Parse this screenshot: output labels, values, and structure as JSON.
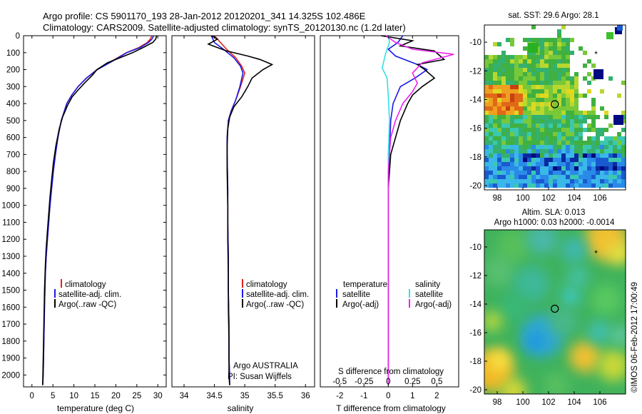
{
  "header": {
    "title": "Argo profile: CS 5901170_193 28-Jan-2012 20120201_341 14.325S 102.486E",
    "subtitle": "Climatology: CARS2009. Satellite-adjusted climatology: synTS_20120130.nc (1.2d later)"
  },
  "colors": {
    "climatology": "#e0201a",
    "satellite": "#1a1ae6",
    "argo": "#000000",
    "satellite_s": "#33e0e8",
    "argo_s": "#ee22ee"
  },
  "chart_data": [
    {
      "type": "line",
      "xlabel": "temperature (deg C)",
      "ylabel": "",
      "xticks": [
        0,
        5,
        10,
        15,
        20,
        25,
        30
      ],
      "yticks": [
        0,
        100,
        200,
        300,
        400,
        500,
        600,
        700,
        800,
        900,
        1000,
        1100,
        1200,
        1300,
        1400,
        1500,
        1600,
        1700,
        1800,
        1900,
        2000
      ],
      "xlim": [
        -2,
        32
      ],
      "ylim": [
        2070,
        0
      ],
      "legend": [
        "climatology",
        "satellite-adj. clim.",
        "Argo(..raw -QC)"
      ],
      "series": [
        {
          "name": "climatology",
          "color": "#e0201a",
          "x": [
            28.6,
            28.2,
            27.5,
            25.5,
            22.5,
            19.0,
            15.5,
            13.0,
            11.0,
            9.5,
            8.3,
            7.0,
            6.2,
            5.6,
            5.1,
            4.7,
            4.3,
            4.0,
            3.7,
            3.4,
            3.2,
            3.0,
            2.85,
            2.7,
            2.55
          ],
          "y": [
            0,
            20,
            40,
            70,
            100,
            150,
            200,
            250,
            300,
            350,
            400,
            500,
            600,
            700,
            800,
            900,
            1000,
            1100,
            1200,
            1300,
            1400,
            1600,
            1800,
            2000,
            2060
          ]
        },
        {
          "name": "satellite-adj. clim.",
          "color": "#1a1ae6",
          "x": [
            29.0,
            28.6,
            27.8,
            25.8,
            22.6,
            19.2,
            15.6,
            13.0,
            11.0,
            9.5,
            8.3,
            7.0,
            6.2,
            5.6,
            5.1,
            4.7,
            4.3,
            4.0,
            3.7,
            3.4,
            3.2,
            3.0,
            2.85,
            2.7,
            2.55
          ],
          "y": [
            0,
            20,
            40,
            70,
            100,
            150,
            200,
            250,
            300,
            350,
            400,
            500,
            600,
            700,
            800,
            900,
            1000,
            1100,
            1200,
            1300,
            1400,
            1600,
            1800,
            2000,
            2060
          ]
        },
        {
          "name": "Argo(..raw -QC)",
          "color": "#000000",
          "x": [
            29.7,
            29.5,
            28.8,
            26.5,
            24.0,
            21.0,
            18.0,
            15.5,
            14.5,
            12.5,
            11.0,
            9.6,
            8.5,
            7.3,
            6.5,
            5.7,
            5.1,
            4.7,
            4.3,
            4.0,
            3.7,
            3.4,
            3.2,
            3.0,
            2.85,
            2.7,
            2.55
          ],
          "y": [
            0,
            20,
            40,
            70,
            100,
            130,
            160,
            200,
            230,
            280,
            320,
            360,
            410,
            480,
            550,
            650,
            750,
            850,
            950,
            1050,
            1150,
            1250,
            1350,
            1500,
            1700,
            1900,
            2060
          ]
        }
      ]
    },
    {
      "type": "line",
      "xlabel": "salinity",
      "ylabel": "",
      "xticks": [
        34,
        34.5,
        35,
        35.5,
        36
      ],
      "xticklabels": [
        "34",
        "34.5",
        "35",
        "35.5",
        "36"
      ],
      "xlim": [
        33.8,
        36.15
      ],
      "ylim": [
        2070,
        0
      ],
      "legend": [
        "climatology",
        "satellite-adj. clim.",
        "Argo(..raw -QC)"
      ],
      "series": [
        {
          "name": "climatology",
          "color": "#e0201a",
          "x": [
            34.5,
            34.6,
            34.7,
            34.85,
            34.95,
            35.0,
            34.93,
            34.85,
            34.78,
            34.73,
            34.71,
            34.71,
            34.72,
            34.72,
            34.73,
            34.73,
            34.74,
            34.74,
            34.75,
            34.75
          ],
          "y": [
            0,
            40,
            80,
            130,
            180,
            220,
            300,
            380,
            440,
            500,
            600,
            700,
            900,
            1100,
            1300,
            1500,
            1700,
            1900,
            2000,
            2060
          ]
        },
        {
          "name": "satellite-adj. clim.",
          "color": "#1a1ae6",
          "x": [
            34.45,
            34.5,
            34.65,
            34.82,
            34.93,
            34.97,
            34.92,
            34.85,
            34.78,
            34.73,
            34.71,
            34.71,
            34.72,
            34.72,
            34.73,
            34.73,
            34.74,
            34.74,
            34.75,
            34.75
          ],
          "y": [
            0,
            40,
            80,
            130,
            180,
            220,
            300,
            380,
            440,
            500,
            600,
            700,
            900,
            1100,
            1300,
            1500,
            1700,
            1900,
            2000,
            2060
          ]
        },
        {
          "name": "Argo(..raw -QC)",
          "color": "#000000",
          "x": [
            34.45,
            34.55,
            34.4,
            34.7,
            35.05,
            35.25,
            35.45,
            35.3,
            35.12,
            35.05,
            34.95,
            34.82,
            34.75,
            34.72,
            34.71,
            34.71,
            34.72,
            34.72,
            34.73,
            34.73,
            34.74,
            34.74,
            34.75
          ],
          "y": [
            0,
            20,
            50,
            90,
            120,
            140,
            170,
            200,
            250,
            300,
            360,
            420,
            480,
            550,
            650,
            800,
            1000,
            1200,
            1400,
            1600,
            1800,
            2000,
            2060
          ]
        }
      ]
    },
    {
      "type": "line",
      "xlabel": "T difference from climatology",
      "x2label": "S difference from climatology",
      "xticks": [
        -2,
        -1,
        0,
        1,
        2
      ],
      "x2ticks": [
        -0.5,
        -0.25,
        0,
        0.25,
        0.5
      ],
      "x2ticklabels": [
        "-0.5",
        "-0.25",
        "0",
        "0.25",
        "0.5"
      ],
      "xlim": [
        -2.8,
        2.9
      ],
      "ylim": [
        2070,
        0
      ],
      "legend_title_left": "temperature",
      "legend_title_right": "salinity",
      "legend": [
        "satellite",
        "Argo(-adj)",
        "satellite",
        "Argo(-adj)"
      ],
      "series": [
        {
          "name": "satellite",
          "color": "#1a1ae6",
          "x": [
            0.6,
            0.4,
            0.0,
            0.3,
            1.2,
            1.6,
            1.1,
            0.5,
            0.2,
            0.1,
            0.05,
            0.0,
            0.0,
            0.0,
            0.0,
            0.0
          ],
          "y": [
            0,
            40,
            80,
            120,
            170,
            200,
            250,
            300,
            400,
            500,
            700,
            900,
            1200,
            1500,
            1800,
            2060
          ]
        },
        {
          "name": "Argo(-adj)",
          "color": "#000000",
          "x": [
            -0.3,
            1.0,
            0.5,
            1.9,
            2.3,
            1.2,
            1.5,
            1.9,
            1.4,
            1.0,
            0.8,
            0.5,
            0.3,
            0.1,
            0.0,
            0.0,
            0.0,
            0.0
          ],
          "y": [
            0,
            30,
            60,
            90,
            140,
            170,
            200,
            250,
            300,
            350,
            400,
            500,
            600,
            700,
            900,
            1200,
            1600,
            2060
          ]
        },
        {
          "name": "satellite",
          "color": "#33e0e8",
          "x": [
            0.0,
            0.05,
            -0.1,
            -0.25,
            -0.05,
            0.0,
            0.05,
            0.0,
            0.0,
            0.0,
            0.0
          ],
          "y": [
            0,
            40,
            100,
            190,
            250,
            350,
            500,
            700,
            1000,
            1500,
            2060
          ]
        },
        {
          "name": "Argo(-adj)",
          "color": "#ee22ee",
          "x": [
            -0.1,
            0.3,
            1.0,
            2.7,
            1.4,
            1.0,
            1.2,
            1.0,
            0.6,
            0.3,
            0.1,
            0.0,
            0.0,
            0.0
          ],
          "y": [
            0,
            40,
            80,
            110,
            160,
            220,
            280,
            330,
            400,
            500,
            600,
            800,
            1200,
            2060
          ]
        }
      ]
    },
    {
      "type": "heatmap",
      "title": "sat. SST: 29.6  Argo: 28.1",
      "xticks": [
        98,
        100,
        102,
        104,
        106
      ],
      "yticks": [
        -10,
        -12,
        -14,
        -16,
        -18,
        -20
      ],
      "xlim": [
        97,
        108
      ],
      "ylim": [
        -20.3,
        -8.8
      ],
      "argo_position": [
        102.486,
        -14.325
      ],
      "asterisk_position": [
        105.7,
        -10.8
      ]
    },
    {
      "type": "heatmap",
      "title": "Altim. SLA: 0.013",
      "subtitle": "Argo h1000: 0.03 h2000: -0.0014",
      "xticks": [
        98,
        100,
        102,
        104,
        106
      ],
      "yticks": [
        -10,
        -12,
        -14,
        -16,
        -18,
        -20
      ],
      "xlim": [
        97,
        108
      ],
      "ylim": [
        -20.3,
        -8.8
      ],
      "argo_position": [
        102.486,
        -14.325
      ],
      "asterisk_position": [
        105.7,
        -10.4
      ]
    }
  ],
  "panel_text": {
    "argo_country": "Argo AUSTRALIA",
    "pi": "PI: Susan Wijffels"
  },
  "watermark": "©IMOS 06-Feb-2012 17:00:49"
}
